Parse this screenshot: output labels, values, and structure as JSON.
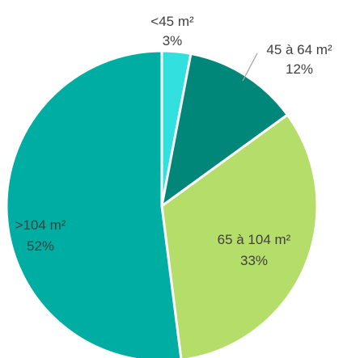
{
  "chart_data": {
    "type": "pie",
    "title": "",
    "start_angle_deg": 0,
    "direction": "clockwise",
    "slices": [
      {
        "name": "<45 m²",
        "value": 3,
        "label": "3%",
        "color": "#33E0E0",
        "label_color": "#404040"
      },
      {
        "name": "45 à 64 m²",
        "value": 12,
        "label": "12%",
        "color": "#00877A",
        "label_color": "#404040"
      },
      {
        "name": "65 à 104 m²",
        "value": 33,
        "label": "33%",
        "color": "#B5DD6A",
        "label_color": "#404040"
      },
      {
        "name": ">104 m²",
        "value": 52,
        "label": "52%",
        "color": "#00ADA3",
        "label_color": "#404040"
      }
    ]
  }
}
